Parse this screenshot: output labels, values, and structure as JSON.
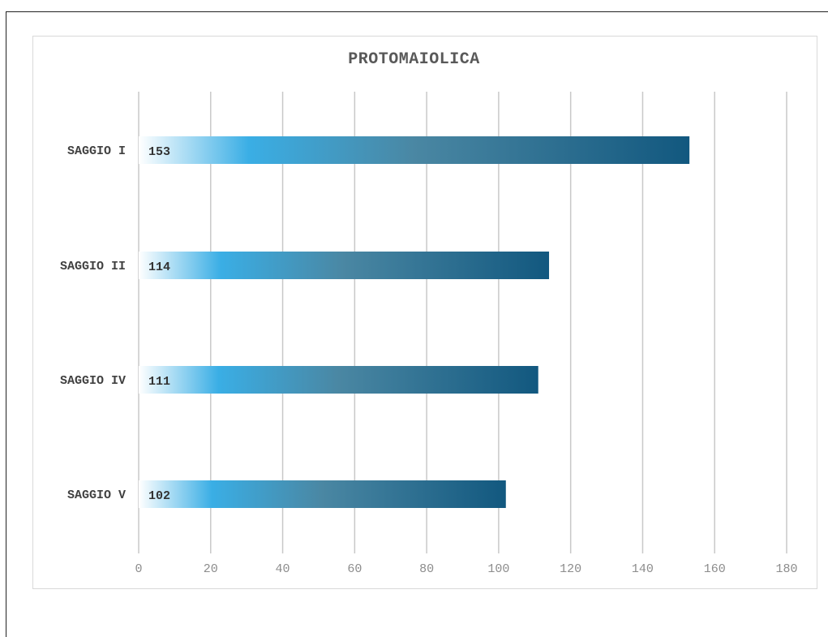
{
  "chart_data": {
    "type": "bar",
    "orientation": "horizontal",
    "title": "PROTOMAIOLICA",
    "categories": [
      "SAGGIO I",
      "SAGGIO II",
      "SAGGIO IV",
      "SAGGIO V"
    ],
    "values": [
      153,
      114,
      111,
      102
    ],
    "xlim": [
      0,
      180
    ],
    "x_ticks": [
      0,
      20,
      40,
      60,
      80,
      100,
      120,
      140,
      160,
      180
    ],
    "grid": "vertical",
    "data_labels": "inside-base",
    "colors": {
      "bar_gradient": [
        "#ffffff",
        "#3aaee5",
        "#4a87a3",
        "#12587f"
      ],
      "grid": "#c8c8c8",
      "tick_text": "#8c8c8c",
      "title_text": "#595959"
    }
  }
}
